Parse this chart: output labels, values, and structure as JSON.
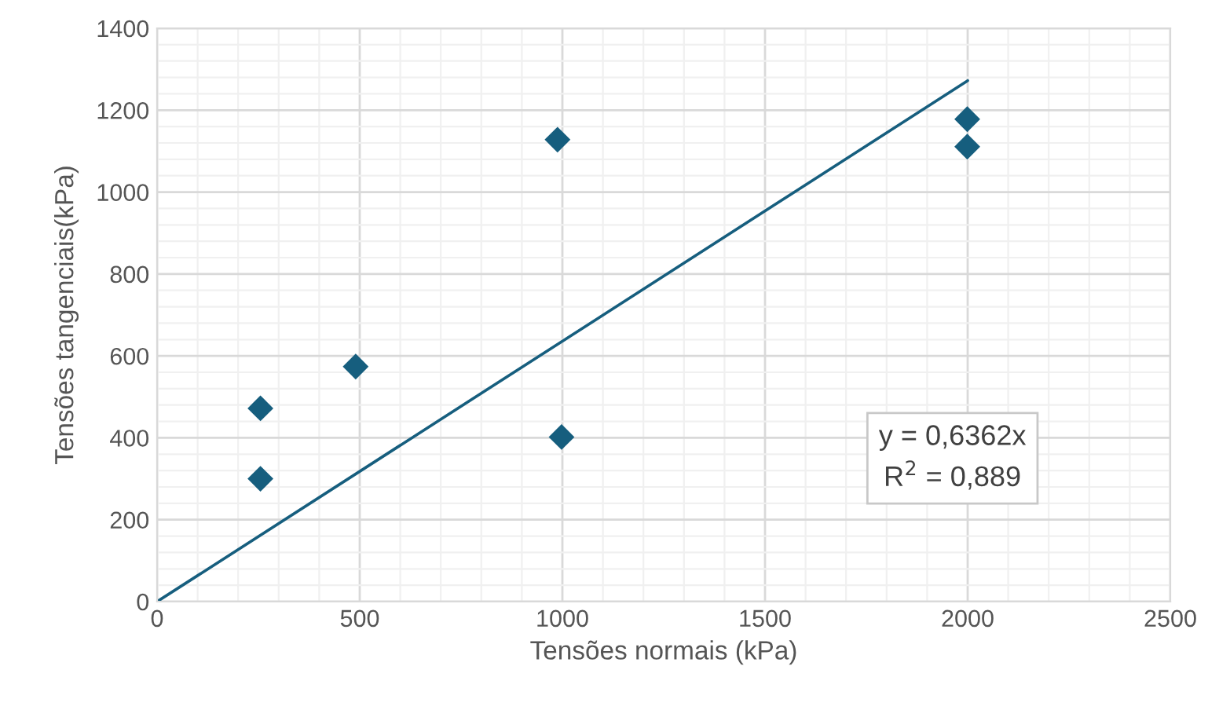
{
  "chart_data": {
    "type": "scatter",
    "xlabel": "Tensões normais (kPa)",
    "ylabel": "Tensões tangenciais(kPa)",
    "series": [
      {
        "color": "#165e7e",
        "marker": "diamond",
        "x": [
          255,
          255,
          490,
          988,
          998,
          1999,
          1999
        ],
        "values": [
          300,
          472,
          574,
          1128,
          402,
          1178,
          1111
        ]
      },
      {
        "type": "line",
        "color": "#165e7e",
        "marker": "none",
        "line_style": "solid",
        "x": [
          0,
          2000
        ],
        "values": [
          0,
          1272
        ]
      }
    ],
    "annotations": [
      "y = 0,6362x\nR$^{2}$ = 0,889"
    ],
    "xlim": [
      0,
      2500
    ],
    "xticks": [
      0,
      500,
      1000,
      1500,
      2000,
      2500
    ],
    "ylim": [
      0,
      1400
    ],
    "yticks": [
      0,
      200,
      400,
      600,
      800,
      1000,
      1200,
      1400
    ],
    "grid": true,
    "legend": false
  }
}
